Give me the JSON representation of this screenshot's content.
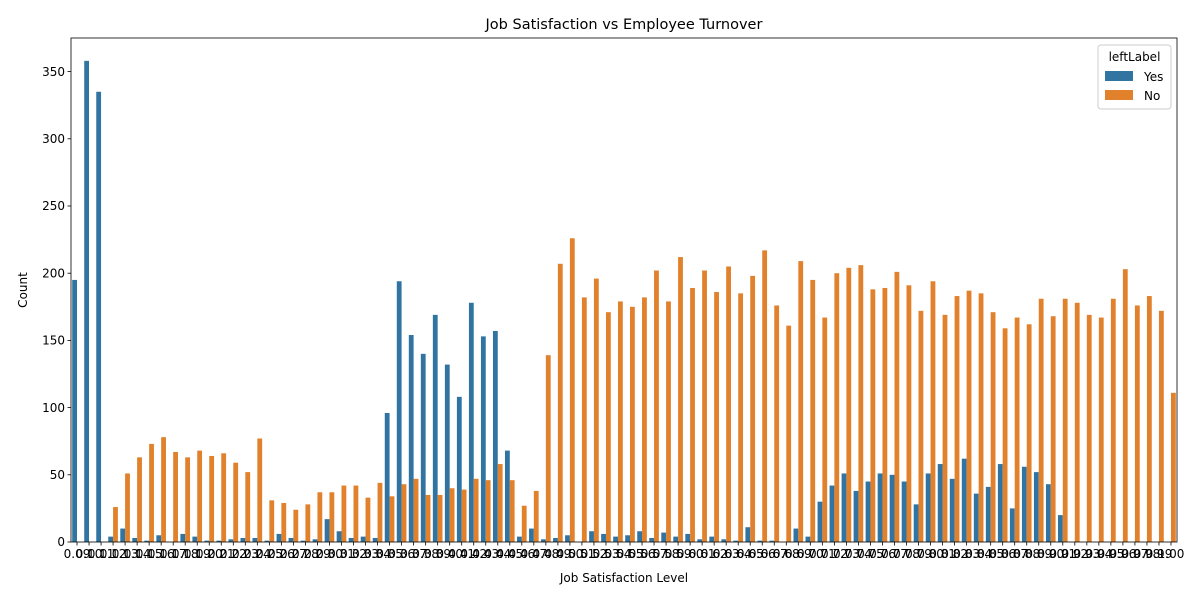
{
  "chart_data": {
    "type": "bar",
    "title": "Job Satisfaction vs Employee Turnover",
    "xlabel": "Job Satisfaction Level",
    "ylabel": "Count",
    "ylim": [
      0,
      375
    ],
    "yticks": [
      0,
      50,
      100,
      150,
      200,
      250,
      300,
      350
    ],
    "grid": false,
    "legend": {
      "title": "leftLabel",
      "placement": "top-right"
    },
    "categories": [
      "0.09",
      "0.10",
      "0.11",
      "0.12",
      "0.13",
      "0.14",
      "0.15",
      "0.16",
      "0.17",
      "0.18",
      "0.19",
      "0.20",
      "0.21",
      "0.22",
      "0.23",
      "0.24",
      "0.25",
      "0.26",
      "0.27",
      "0.28",
      "0.29",
      "0.30",
      "0.31",
      "0.32",
      "0.33",
      "0.34",
      "0.35",
      "0.36",
      "0.37",
      "0.38",
      "0.39",
      "0.40",
      "0.41",
      "0.42",
      "0.43",
      "0.44",
      "0.45",
      "0.46",
      "0.47",
      "0.48",
      "0.49",
      "0.50",
      "0.51",
      "0.52",
      "0.53",
      "0.54",
      "0.55",
      "0.56",
      "0.57",
      "0.58",
      "0.59",
      "0.60",
      "0.61",
      "0.62",
      "0.63",
      "0.64",
      "0.65",
      "0.66",
      "0.67",
      "0.68",
      "0.69",
      "0.70",
      "0.71",
      "0.72",
      "0.73",
      "0.74",
      "0.75",
      "0.76",
      "0.77",
      "0.78",
      "0.79",
      "0.80",
      "0.81",
      "0.82",
      "0.83",
      "0.84",
      "0.85",
      "0.86",
      "0.87",
      "0.88",
      "0.89",
      "0.90",
      "0.91",
      "0.92",
      "0.93",
      "0.94",
      "0.95",
      "0.96",
      "0.97",
      "0.98",
      "0.99",
      "1.00"
    ],
    "series": [
      {
        "name": "Yes",
        "color": "#3274a1",
        "values": [
          195,
          358,
          335,
          4,
          10,
          3,
          1,
          5,
          0,
          6,
          4,
          1,
          1,
          2,
          3,
          3,
          1,
          6,
          3,
          1,
          2,
          17,
          8,
          3,
          4,
          3,
          96,
          194,
          154,
          140,
          169,
          132,
          108,
          178,
          153,
          157,
          68,
          4,
          10,
          2,
          3,
          5,
          0,
          8,
          6,
          4,
          5,
          8,
          3,
          7,
          4,
          6,
          2,
          4,
          2,
          1,
          11,
          1,
          1,
          0,
          10,
          4,
          30,
          42,
          51,
          38,
          45,
          51,
          50,
          45,
          28,
          51,
          58,
          47,
          62,
          36,
          41,
          58,
          25,
          56,
          52,
          43,
          20,
          0,
          0,
          0,
          0,
          0,
          0,
          0,
          0,
          0
        ]
      },
      {
        "name": "No",
        "color": "#e1812c",
        "values": [
          0,
          0,
          0,
          26,
          51,
          63,
          73,
          78,
          67,
          63,
          68,
          64,
          66,
          59,
          52,
          77,
          31,
          29,
          24,
          28,
          37,
          37,
          42,
          42,
          33,
          44,
          34,
          43,
          47,
          35,
          35,
          40,
          39,
          47,
          46,
          58,
          46,
          27,
          38,
          139,
          207,
          226,
          182,
          196,
          171,
          179,
          175,
          182,
          202,
          179,
          212,
          189,
          202,
          186,
          205,
          185,
          198,
          217,
          176,
          161,
          209,
          195,
          167,
          200,
          204,
          206,
          188,
          189,
          201,
          191,
          172,
          194,
          169,
          183,
          187,
          185,
          171,
          159,
          167,
          162,
          181,
          168,
          181,
          178,
          169,
          167,
          181,
          203,
          176,
          183,
          172,
          111
        ]
      }
    ]
  }
}
